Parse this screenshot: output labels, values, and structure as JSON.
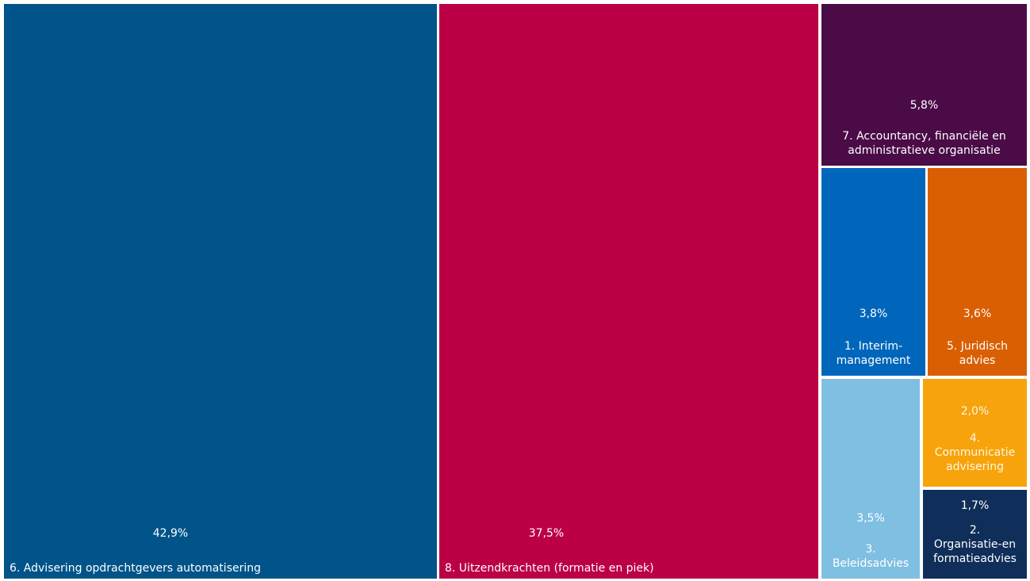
{
  "chart_data": {
    "type": "treemap",
    "items": [
      {
        "label": "6. Advisering opdrachtgevers automatisering",
        "value": 42.9,
        "value_label": "42,9%",
        "color": "#00548a"
      },
      {
        "label": "8. Uitzendkrachten (formatie en piek)",
        "value": 37.5,
        "value_label": "37,5%",
        "color": "#bb0045"
      },
      {
        "label": "7. Accountancy, financiële en administratieve organisatie",
        "value": 5.8,
        "value_label": "5,8%",
        "color": "#4a0b47"
      },
      {
        "label": "1. Interim-management",
        "value": 3.8,
        "value_label": "3,8%",
        "color": "#0066bb"
      },
      {
        "label": "5. Juridisch advies",
        "value": 3.6,
        "value_label": "3,6%",
        "color": "#d95f02"
      },
      {
        "label": "3. Beleidsadvies",
        "value": 3.5,
        "value_label": "3,5%",
        "color": "#7fbfe2"
      },
      {
        "label": "4. Communicatie advisering",
        "value": 2.0,
        "value_label": "2,0%",
        "color": "#f7a30b"
      },
      {
        "label": "2. Organisatie-en formatieadvies",
        "value": 1.7,
        "value_label": "1,7%",
        "color": "#0f2e59"
      }
    ]
  }
}
